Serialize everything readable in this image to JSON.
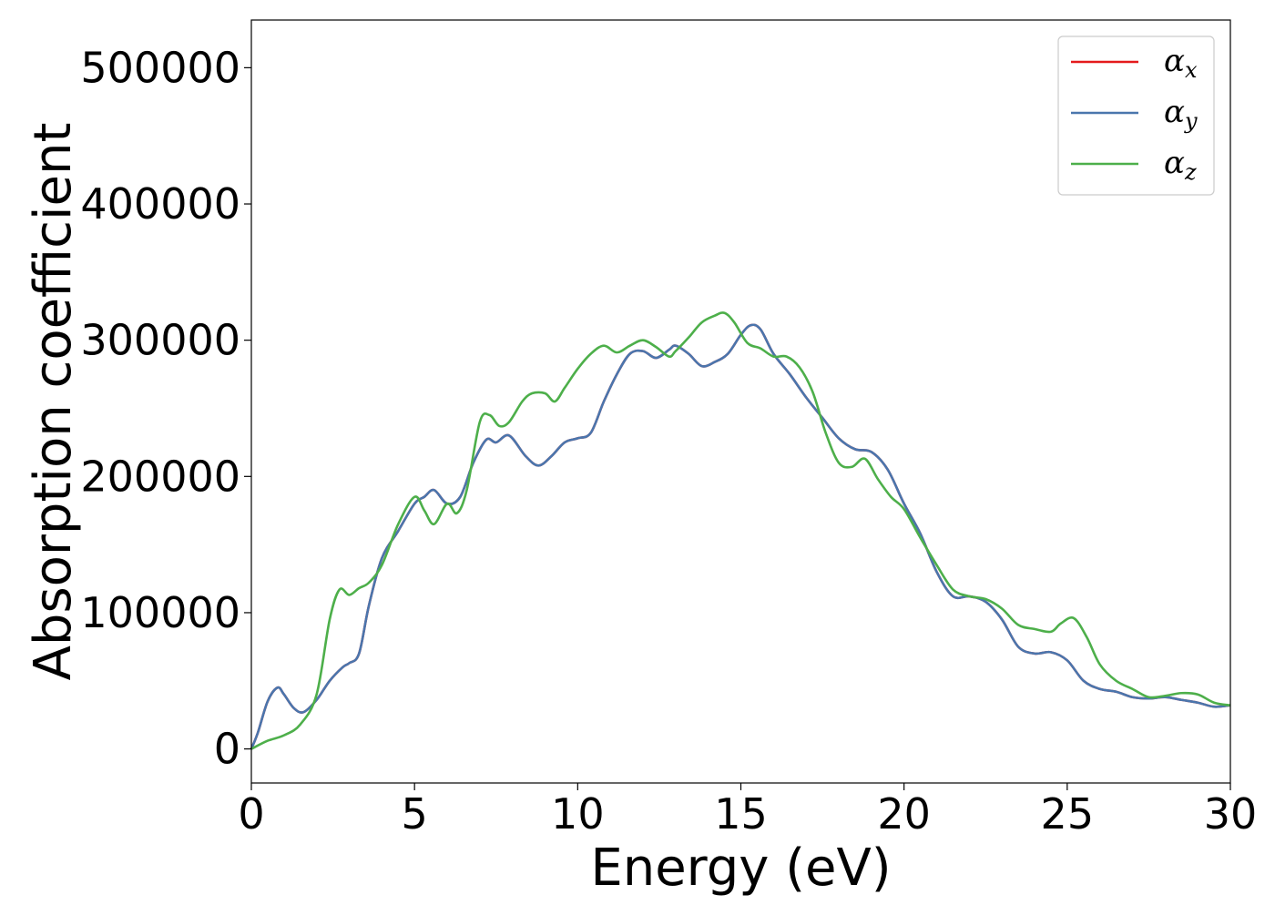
{
  "chart_data": {
    "type": "line",
    "xlabel": "Energy (eV)",
    "ylabel": "Absorption coefficient",
    "xlim": [
      0,
      30
    ],
    "ylim": [
      -25000,
      535000
    ],
    "xticks": [
      0,
      5,
      10,
      15,
      20,
      25,
      30
    ],
    "yticks": [
      0,
      100000,
      200000,
      300000,
      400000,
      500000
    ],
    "xtick_labels": [
      "0",
      "5",
      "10",
      "15",
      "20",
      "25",
      "30"
    ],
    "ytick_labels": [
      "0",
      "100000",
      "200000",
      "300000",
      "400000",
      "500000"
    ],
    "grid": false,
    "legend_position": "top-right",
    "series": [
      {
        "name": "αx",
        "name_base": "α",
        "name_sub": "x",
        "color": "#e41a1c",
        "x": [
          0,
          0.2,
          0.5,
          0.8,
          1.0,
          1.3,
          1.6,
          2.0,
          2.4,
          2.8,
          3.0,
          3.3,
          3.6,
          4.0,
          4.5,
          5.0,
          5.3,
          5.6,
          6.0,
          6.4,
          6.8,
          7.2,
          7.5,
          7.9,
          8.4,
          8.8,
          9.2,
          9.6,
          10.0,
          10.4,
          10.8,
          11.2,
          11.6,
          12.0,
          12.4,
          12.8,
          13.0,
          13.4,
          13.8,
          14.2,
          14.6,
          15.0,
          15.3,
          15.6,
          16.0,
          16.5,
          17.0,
          17.5,
          18.0,
          18.5,
          19.0,
          19.5,
          20.0,
          20.5,
          21.0,
          21.5,
          22.0,
          22.5,
          23.0,
          23.5,
          24.0,
          24.5,
          25.0,
          25.5,
          26.0,
          26.5,
          27.0,
          27.5,
          28.0,
          28.5,
          29.0,
          29.5,
          30.0
        ],
        "values": [
          0,
          12000,
          35000,
          45000,
          40000,
          30000,
          27000,
          36000,
          50000,
          60000,
          63000,
          70000,
          105000,
          140000,
          160000,
          180000,
          185000,
          190000,
          180000,
          185000,
          210000,
          227000,
          225000,
          230000,
          215000,
          208000,
          215000,
          225000,
          228000,
          232000,
          255000,
          275000,
          290000,
          292000,
          287000,
          293000,
          296000,
          290000,
          281000,
          284000,
          290000,
          304000,
          311000,
          308000,
          290000,
          275000,
          258000,
          243000,
          228000,
          220000,
          218000,
          205000,
          180000,
          158000,
          130000,
          112000,
          112000,
          108000,
          95000,
          75000,
          70000,
          71000,
          65000,
          50000,
          44000,
          42000,
          38000,
          37000,
          38000,
          36000,
          34000,
          31000,
          32000
        ]
      },
      {
        "name": "αy",
        "name_base": "α",
        "name_sub": "y",
        "color": "#4a76ad",
        "x": [
          0,
          0.2,
          0.5,
          0.8,
          1.0,
          1.3,
          1.6,
          2.0,
          2.4,
          2.8,
          3.0,
          3.3,
          3.6,
          4.0,
          4.5,
          5.0,
          5.3,
          5.6,
          6.0,
          6.4,
          6.8,
          7.2,
          7.5,
          7.9,
          8.4,
          8.8,
          9.2,
          9.6,
          10.0,
          10.4,
          10.8,
          11.2,
          11.6,
          12.0,
          12.4,
          12.8,
          13.0,
          13.4,
          13.8,
          14.2,
          14.6,
          15.0,
          15.3,
          15.6,
          16.0,
          16.5,
          17.0,
          17.5,
          18.0,
          18.5,
          19.0,
          19.5,
          20.0,
          20.5,
          21.0,
          21.5,
          22.0,
          22.5,
          23.0,
          23.5,
          24.0,
          24.5,
          25.0,
          25.5,
          26.0,
          26.5,
          27.0,
          27.5,
          28.0,
          28.5,
          29.0,
          29.5,
          30.0
        ],
        "values": [
          0,
          12000,
          35000,
          45000,
          40000,
          30000,
          27000,
          36000,
          50000,
          60000,
          63000,
          70000,
          105000,
          140000,
          160000,
          180000,
          185000,
          190000,
          180000,
          185000,
          210000,
          227000,
          225000,
          230000,
          215000,
          208000,
          215000,
          225000,
          228000,
          232000,
          255000,
          275000,
          290000,
          292000,
          287000,
          293000,
          296000,
          290000,
          281000,
          284000,
          290000,
          304000,
          311000,
          308000,
          290000,
          275000,
          258000,
          243000,
          228000,
          220000,
          218000,
          205000,
          180000,
          158000,
          130000,
          112000,
          112000,
          108000,
          95000,
          75000,
          70000,
          71000,
          65000,
          50000,
          44000,
          42000,
          38000,
          37000,
          38000,
          36000,
          34000,
          31000,
          32000
        ]
      },
      {
        "name": "αz",
        "name_base": "α",
        "name_sub": "z",
        "color": "#4daf4a",
        "x": [
          0,
          0.5,
          1.0,
          1.5,
          2.0,
          2.4,
          2.7,
          3.0,
          3.3,
          3.6,
          4.0,
          4.5,
          5.0,
          5.3,
          5.6,
          6.0,
          6.3,
          6.6,
          7.0,
          7.3,
          7.6,
          7.9,
          8.3,
          8.6,
          9.0,
          9.3,
          9.6,
          10.0,
          10.4,
          10.8,
          11.2,
          11.6,
          12.0,
          12.4,
          12.8,
          13.0,
          13.4,
          13.8,
          14.2,
          14.5,
          14.8,
          15.2,
          15.6,
          16.0,
          16.4,
          16.8,
          17.2,
          17.6,
          18.0,
          18.4,
          18.8,
          19.2,
          19.6,
          20.0,
          20.5,
          21.0,
          21.5,
          22.0,
          22.5,
          23.0,
          23.5,
          24.0,
          24.5,
          24.8,
          25.2,
          25.6,
          26.0,
          26.5,
          27.0,
          27.5,
          28.0,
          28.5,
          29.0,
          29.5,
          30.0
        ],
        "values": [
          0,
          6000,
          10000,
          18000,
          40000,
          95000,
          117000,
          113000,
          118000,
          122000,
          135000,
          165000,
          185000,
          175000,
          165000,
          180000,
          173000,
          190000,
          240000,
          245000,
          237000,
          240000,
          255000,
          261000,
          261000,
          255000,
          265000,
          279000,
          290000,
          296000,
          291000,
          296000,
          300000,
          295000,
          288000,
          292000,
          302000,
          313000,
          318000,
          320000,
          313000,
          298000,
          294000,
          288000,
          288000,
          280000,
          262000,
          232000,
          210000,
          207000,
          213000,
          198000,
          185000,
          176000,
          155000,
          135000,
          117000,
          112000,
          110000,
          103000,
          91000,
          88000,
          86000,
          92000,
          96000,
          82000,
          62000,
          50000,
          44000,
          38000,
          39000,
          41000,
          40000,
          34000,
          32000
        ]
      }
    ]
  }
}
